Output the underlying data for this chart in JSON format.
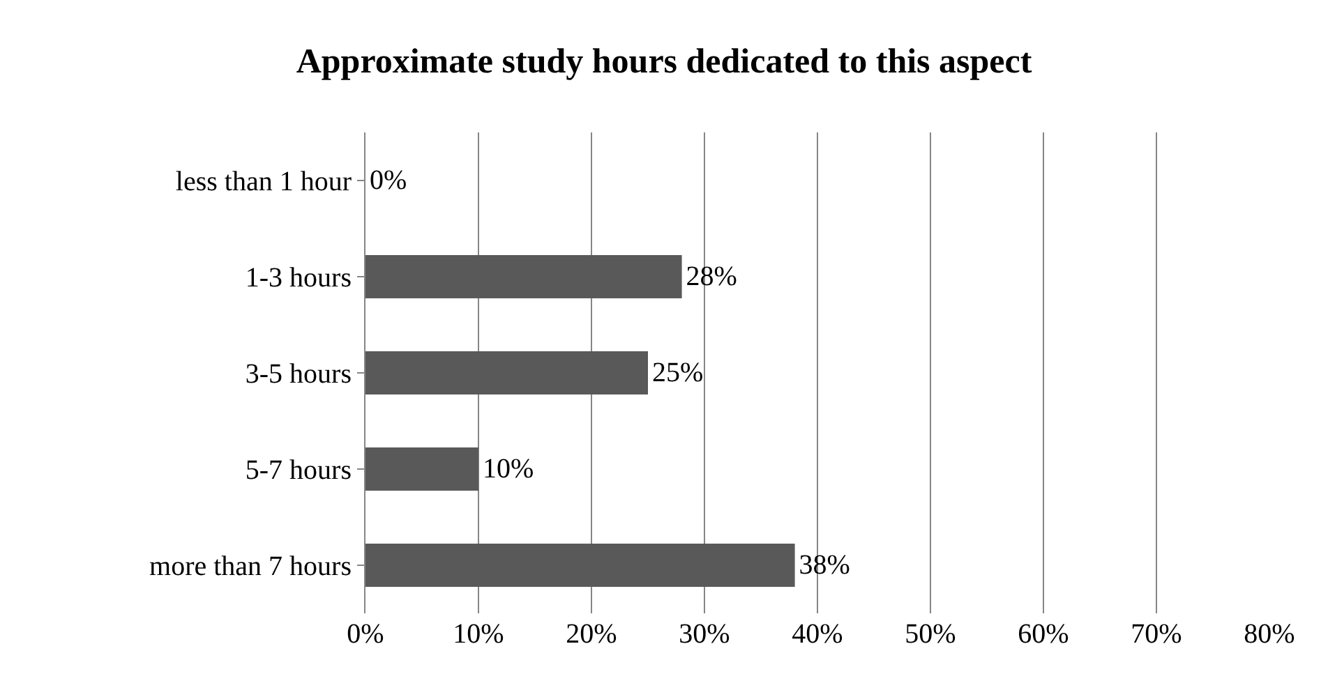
{
  "chart_data": {
    "type": "bar",
    "orientation": "horizontal",
    "title": "Approximate study hours dedicated to this aspect",
    "categories": [
      "less than 1 hour",
      "1-3 hours",
      "3-5 hours",
      "5-7 hours",
      "more than 7 hours"
    ],
    "values": [
      0,
      28,
      25,
      10,
      38
    ],
    "color": "#595959",
    "value_labels": [
      "0%",
      "28%",
      "25%",
      "10%",
      "38%"
    ],
    "xlim": [
      0,
      80
    ],
    "xticks": [
      {
        "value": 0,
        "label": "0%"
      },
      {
        "value": 10,
        "label": "10%"
      },
      {
        "value": 20,
        "label": "20%"
      },
      {
        "value": 30,
        "label": "30%"
      },
      {
        "value": 40,
        "label": "40%"
      },
      {
        "value": 50,
        "label": "50%"
      },
      {
        "value": 60,
        "label": "60%"
      },
      {
        "value": 70,
        "label": "70%"
      },
      {
        "value": 80,
        "label": "80%"
      }
    ],
    "grid": "x",
    "legend": false
  }
}
